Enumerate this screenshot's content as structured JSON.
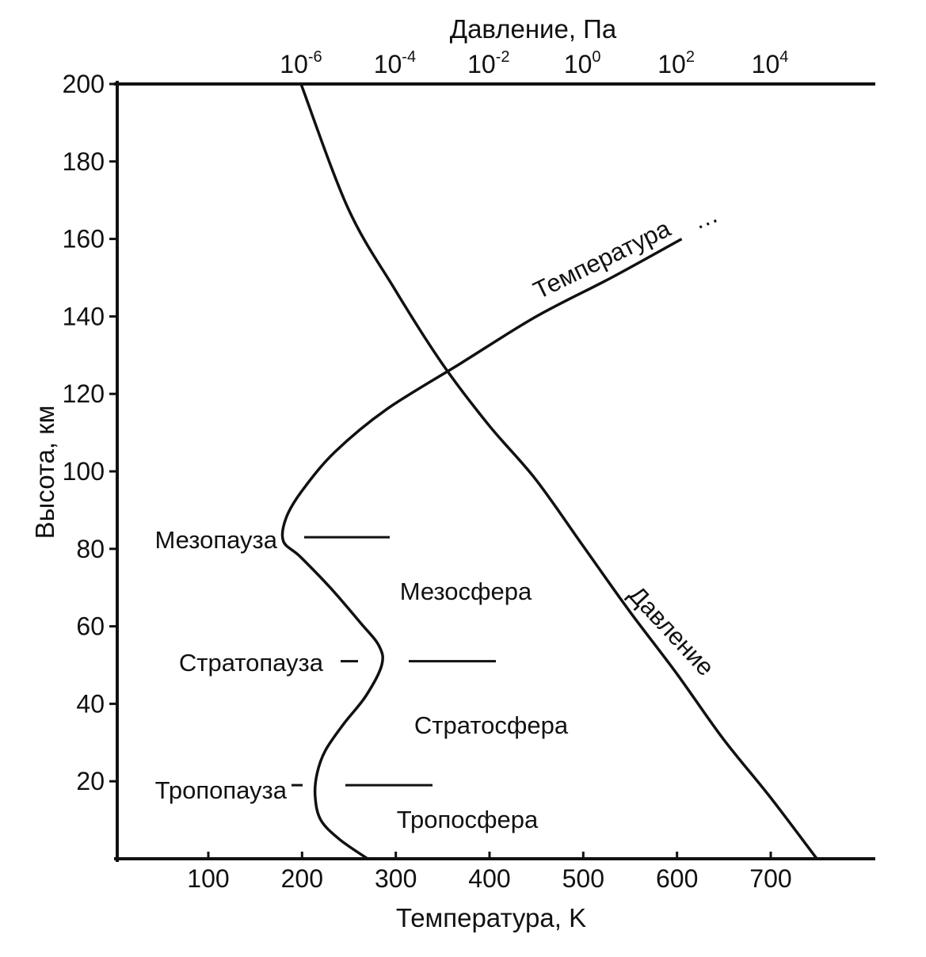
{
  "chart_data": {
    "type": "line",
    "title": "",
    "xlabel": "Температура, K",
    "ylabel": "Высота, км",
    "x2label": "Давление, Па",
    "xlim": [
      0,
      800
    ],
    "ylim": [
      0,
      200
    ],
    "x_ticks": [
      "100",
      "200",
      "300",
      "400",
      "500",
      "600",
      "700"
    ],
    "y_ticks": [
      "20",
      "40",
      "60",
      "80",
      "100",
      "120",
      "140",
      "160",
      "180",
      "200"
    ],
    "x2_scale": "log",
    "x2_ticks": [
      {
        "base": "10",
        "exp": "-6",
        "value": 1e-06
      },
      {
        "base": "10",
        "exp": "-4",
        "value": 0.0001
      },
      {
        "base": "10",
        "exp": "-2",
        "value": 0.01
      },
      {
        "base": "10",
        "exp": "0",
        "value": 1
      },
      {
        "base": "10",
        "exp": "2",
        "value": 100
      },
      {
        "base": "10",
        "exp": "4",
        "value": 10000
      }
    ],
    "series": [
      {
        "name": "Температура",
        "x_units": "K",
        "x": [
          270,
          240,
          220,
          214,
          216,
          225,
          245,
          268,
          285,
          282,
          262,
          230,
          198,
          180,
          183,
          200,
          235,
          290,
          370,
          450,
          530,
          605
        ],
        "y": [
          0,
          5,
          10,
          16,
          22,
          28,
          35,
          42,
          50,
          55,
          61,
          70,
          78,
          82,
          88,
          95,
          105,
          116,
          128,
          140,
          150,
          160
        ]
      },
      {
        "name": "Давление",
        "x_units": "Па",
        "x": [
          100000,
          10000,
          1000,
          100,
          10,
          1,
          0.1,
          0.01,
          0.001,
          0.0001,
          1e-05,
          1e-06
        ],
        "y": [
          0,
          16,
          31,
          48,
          64,
          81,
          98,
          112,
          128,
          147,
          168,
          200
        ]
      }
    ],
    "extrapolation_dots": "…",
    "regions": [
      {
        "label": "Тропосфера"
      },
      {
        "label": "Стратосфера"
      },
      {
        "label": "Мезосфера"
      }
    ],
    "boundaries": [
      {
        "label": "Тропопауза",
        "altitude": 19
      },
      {
        "label": "Стратопауза",
        "altitude": 51
      },
      {
        "label": "Мезопауза",
        "altitude": 83
      }
    ],
    "grid": false,
    "legend": "none"
  }
}
